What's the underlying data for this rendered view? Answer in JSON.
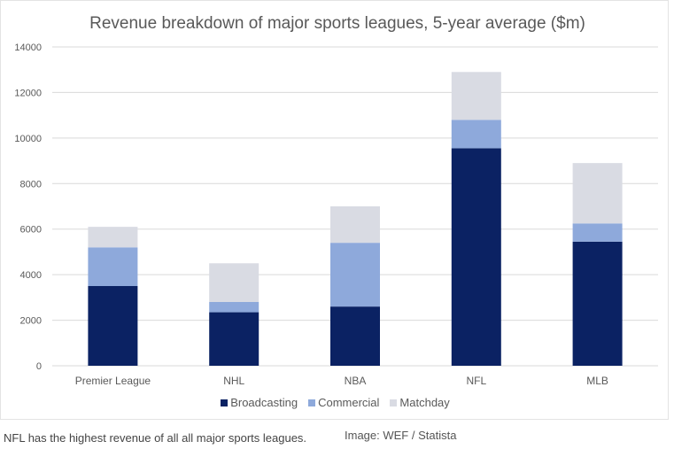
{
  "caption": "NFL has the highest revenue of all all major sports leagues.",
  "credit": "Image: WEF / Statista",
  "colors": {
    "Broadcasting": "#0b2263",
    "Commercial": "#8ea9db",
    "Matchday": "#d9dbe3",
    "grid": "#d9d9d9",
    "axis_text": "#595959",
    "title": "#595959"
  },
  "chart_data": {
    "type": "bar",
    "stacked": true,
    "title": "Revenue breakdown of major sports leagues, 5-year average ($m)",
    "xlabel": "",
    "ylabel": "",
    "ylim": [
      0,
      14000
    ],
    "yticks": [
      0,
      2000,
      4000,
      6000,
      8000,
      10000,
      12000,
      14000
    ],
    "categories": [
      "Premier League",
      "NHL",
      "NBA",
      "NFL",
      "MLB"
    ],
    "series": [
      {
        "name": "Broadcasting",
        "values": [
          3500,
          2350,
          2600,
          9550,
          5450
        ]
      },
      {
        "name": "Commercial",
        "values": [
          1700,
          450,
          2800,
          1250,
          800
        ]
      },
      {
        "name": "Matchday",
        "values": [
          900,
          1700,
          1600,
          2100,
          2650
        ]
      }
    ],
    "legend_position": "bottom",
    "grid": true
  }
}
